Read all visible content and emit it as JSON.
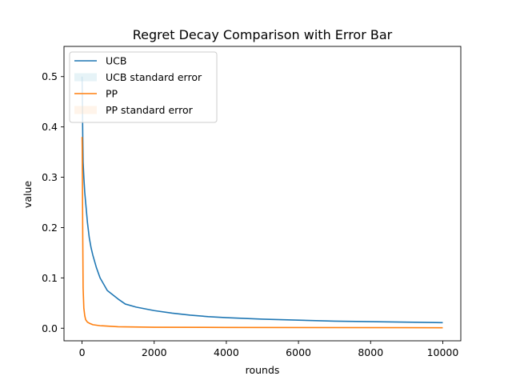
{
  "chart_data": {
    "type": "line",
    "title": "Regret Decay Comparison with Error Bar",
    "xlabel": "rounds",
    "ylabel": "value",
    "xlim": [
      -500,
      10500
    ],
    "ylim": [
      -0.025,
      0.56
    ],
    "xticks": [
      0,
      2000,
      4000,
      6000,
      8000,
      10000
    ],
    "xtick_labels": [
      "0",
      "2000",
      "4000",
      "6000",
      "8000",
      "10000"
    ],
    "yticks": [
      0.0,
      0.1,
      0.2,
      0.3,
      0.4,
      0.5
    ],
    "ytick_labels": [
      "0.0",
      "0.1",
      "0.2",
      "0.3",
      "0.4",
      "0.5"
    ],
    "grid": false,
    "legend_position": "upper-left",
    "legend_entries": [
      {
        "label": "UCB",
        "kind": "line",
        "color": "#1f77b4"
      },
      {
        "label": "UCB standard error",
        "kind": "band",
        "color": "#add8e6"
      },
      {
        "label": "PP",
        "kind": "line",
        "color": "#ff7f0e"
      },
      {
        "label": "PP standard error",
        "kind": "band",
        "color": "#ffdab9"
      }
    ],
    "series": [
      {
        "name": "UCB",
        "color": "#1f77b4",
        "x": [
          1,
          10,
          20,
          30,
          50,
          75,
          100,
          150,
          200,
          250,
          300,
          400,
          500,
          700,
          1000,
          1200,
          1500,
          2000,
          2500,
          3000,
          3500,
          4000,
          5000,
          6000,
          7000,
          8000,
          9000,
          10000
        ],
        "y": [
          0.5,
          0.45,
          0.38,
          0.33,
          0.3,
          0.27,
          0.25,
          0.21,
          0.18,
          0.16,
          0.145,
          0.12,
          0.1,
          0.075,
          0.058,
          0.048,
          0.042,
          0.035,
          0.03,
          0.026,
          0.023,
          0.021,
          0.018,
          0.016,
          0.014,
          0.013,
          0.012,
          0.011
        ]
      },
      {
        "name": "PP",
        "color": "#ff7f0e",
        "x": [
          1,
          5,
          10,
          20,
          30,
          50,
          75,
          100,
          150,
          200,
          300,
          500,
          1000,
          2000,
          4000,
          10000
        ],
        "y": [
          0.38,
          0.36,
          0.3,
          0.18,
          0.08,
          0.04,
          0.025,
          0.017,
          0.012,
          0.01,
          0.007,
          0.005,
          0.003,
          0.002,
          0.0015,
          0.001
        ]
      }
    ]
  }
}
